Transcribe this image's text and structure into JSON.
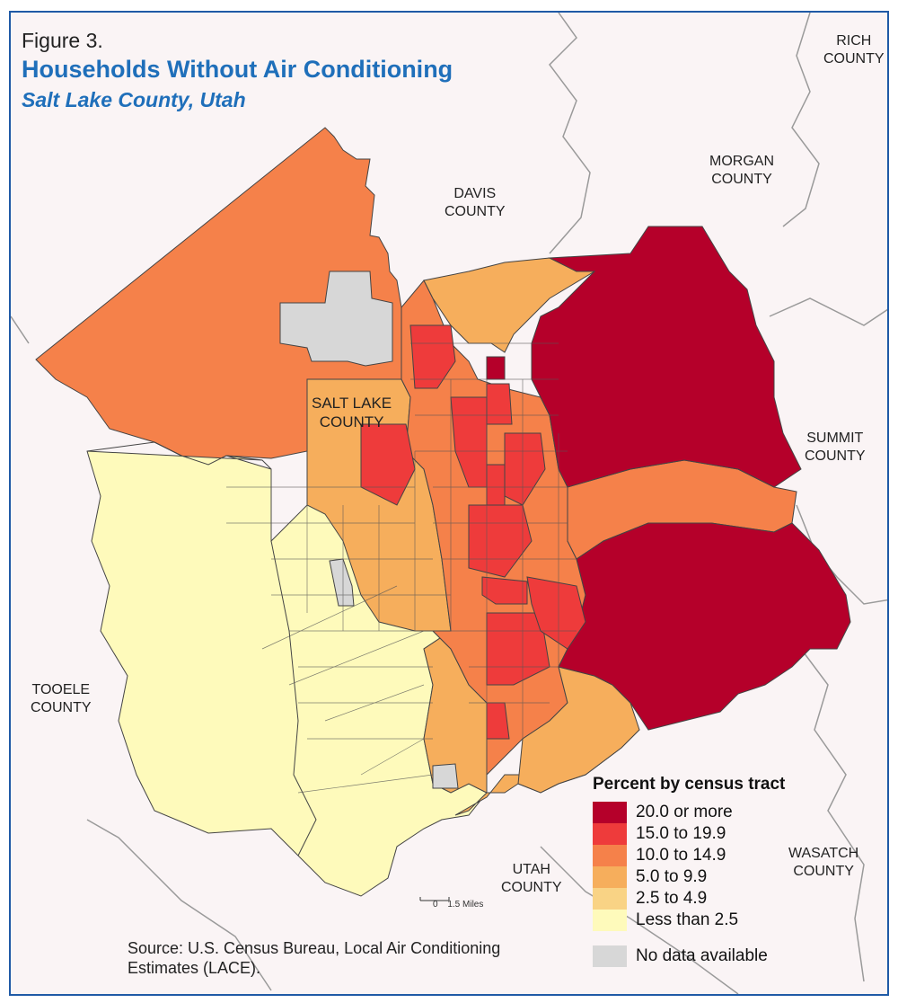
{
  "figure_label": "Figure 3.",
  "title": "Households Without Air Conditioning",
  "subtitle": "Salt Lake County, Utah",
  "counties": {
    "rich": [
      "RICH",
      "COUNTY"
    ],
    "morgan": [
      "MORGAN",
      "COUNTY"
    ],
    "davis": [
      "DAVIS",
      "COUNTY"
    ],
    "salt_lake": [
      "SALT LAKE",
      "COUNTY"
    ],
    "summit": [
      "SUMMIT",
      "COUNTY"
    ],
    "tooele": [
      "TOOELE",
      "COUNTY"
    ],
    "utah": [
      "UTAH",
      "COUNTY"
    ],
    "wasatch": [
      "WASATCH",
      "COUNTY"
    ]
  },
  "legend": {
    "title": "Percent by census tract",
    "items": [
      {
        "label": "20.0 or more",
        "color": "#b5002a"
      },
      {
        "label": "15.0 to 19.9",
        "color": "#ee3b3b"
      },
      {
        "label": "10.0 to 14.9",
        "color": "#f5814a"
      },
      {
        "label": "5.0 to 9.9",
        "color": "#f6ae5c"
      },
      {
        "label": "2.5 to 4.9",
        "color": "#f9d385"
      },
      {
        "label": "Less than 2.5",
        "color": "#fefabb"
      }
    ],
    "no_data": {
      "label": "No data available",
      "color": "#d7d7d7"
    }
  },
  "scale_bar": {
    "zero": "0",
    "label": "1.5 Miles"
  },
  "source": "Source: U.S. Census Bureau, Local Air Conditioning Estimates (LACE).",
  "colors": {
    "title_blue": "#1f6fba",
    "frame_border": "#1f5aa6",
    "background": "#faf4f5"
  }
}
